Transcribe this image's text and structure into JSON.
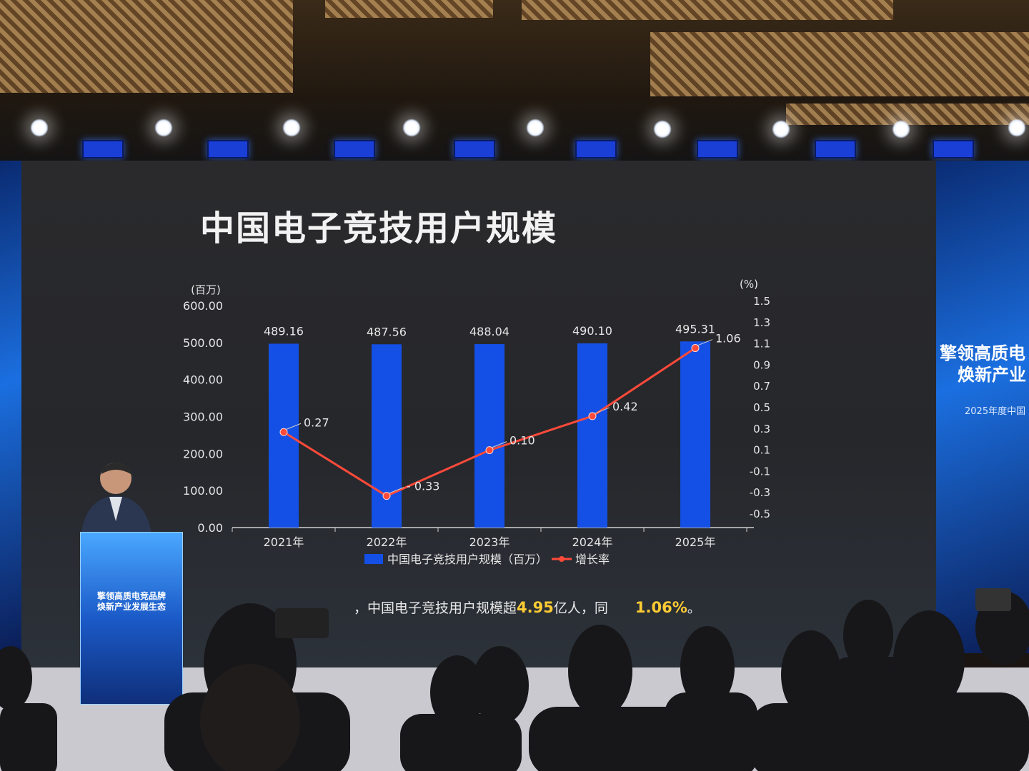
{
  "slide": {
    "title": "中国电子竞技用户规模",
    "footnote_pre": "，中国电子竞技用户规模超",
    "footnote_hl1": "4.95",
    "footnote_mid": "亿人，同",
    "footnote_hl2": "1.06%",
    "footnote_post": "。"
  },
  "side_banner": {
    "line1": "擎领高质电",
    "line2": "焕新产业",
    "sub": "2025年度中国"
  },
  "podium": {
    "line1": "擎领高质电竞品牌",
    "line2": "焕新产业发展生态"
  },
  "colors": {
    "bar": "#1450e6",
    "line": "#ff4a3a",
    "axis": "#d9d9d9"
  },
  "chart_data": {
    "type": "bar",
    "title": "中国电子竞技用户规模",
    "categories": [
      "2021年",
      "2022年",
      "2023年",
      "2024年",
      "2025年"
    ],
    "series": [
      {
        "name": "中国电子竞技用户规模（百万）",
        "type": "bar",
        "axis": "left",
        "values": [
          489.16,
          487.56,
          488.04,
          490.1,
          495.31
        ],
        "labels": [
          "489.16",
          "487.56",
          "488.04",
          "490.10",
          "495.31"
        ]
      },
      {
        "name": "增长率",
        "type": "line",
        "axis": "right",
        "values": [
          0.27,
          -0.33,
          0.1,
          0.42,
          1.06
        ],
        "labels": [
          "0.27",
          "- 0.33",
          "0.10",
          "0.42",
          "1.06"
        ]
      }
    ],
    "y_left": {
      "unit": "(百万)",
      "ylim": [
        0,
        600
      ],
      "ticks": [
        "0.00",
        "100.00",
        "200.00",
        "300.00",
        "400.00",
        "500.00",
        "600.00"
      ]
    },
    "y_right": {
      "unit": "(%)",
      "ylim": [
        -0.5,
        1.5
      ],
      "ticks": [
        "-0.5",
        "-0.3",
        "-0.1",
        "0.1",
        "0.3",
        "0.5",
        "0.7",
        "0.9",
        "1.1",
        "1.3",
        "1.5"
      ]
    },
    "legend_position": "bottom",
    "grid": false
  }
}
